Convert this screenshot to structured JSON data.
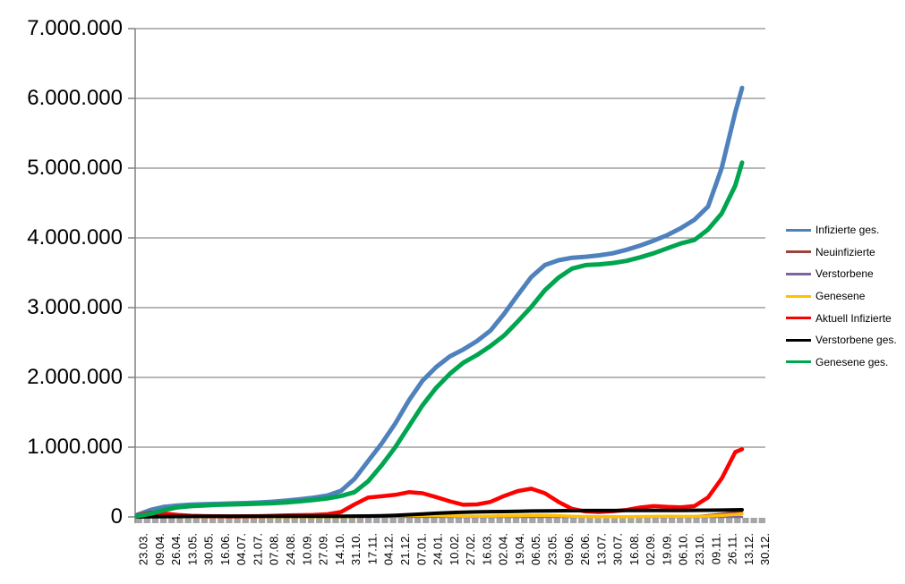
{
  "chart_data": {
    "type": "line",
    "title": "",
    "xlabel": "",
    "ylabel": "",
    "grid": "horizontal",
    "legend_position": "right",
    "ylim": [
      0,
      7000000
    ],
    "y_tick_labels": [
      "0",
      "1.000.000",
      "2.000.000",
      "3.000.000",
      "4.000.000",
      "5.000.000",
      "6.000.000",
      "7.000.000"
    ],
    "x_tick_labels": [
      "23.03.",
      "09.04.",
      "26.04.",
      "13.05.",
      "30.05.",
      "16.06.",
      "04.07.",
      "21.07.",
      "07.08.",
      "24.08.",
      "10.09.",
      "27.09.",
      "14.10.",
      "31.10.",
      "17.11.",
      "04.12.",
      "21.12.",
      "07.01.",
      "24.01.",
      "10.02.",
      "27.02.",
      "16.03.",
      "02.04.",
      "19.04.",
      "06.05.",
      "23.05.",
      "09.06.",
      "26.06.",
      "13.07.",
      "30.07.",
      "16.08.",
      "02.09.",
      "19.09.",
      "06.10.",
      "23.10.",
      "09.11.",
      "26.11.",
      "13.12.",
      "30.12."
    ],
    "x_tick_interval_days": 17,
    "days": [
      0,
      14,
      28,
      42,
      56,
      70,
      84,
      98,
      112,
      126,
      140,
      154,
      168,
      182,
      196,
      210,
      224,
      238,
      252,
      266,
      280,
      294,
      308,
      322,
      336,
      350,
      364,
      378,
      392,
      406,
      420,
      434,
      448,
      462,
      476,
      490,
      504,
      518,
      532,
      546,
      560,
      574,
      588,
      602,
      616,
      623
    ],
    "series": [
      {
        "name": "Infizierte ges.",
        "color": "#4F81BD",
        "width": 5,
        "values_millions": [
          0.029,
          0.1,
          0.145,
          0.164,
          0.176,
          0.183,
          0.187,
          0.194,
          0.199,
          0.206,
          0.218,
          0.233,
          0.253,
          0.275,
          0.306,
          0.373,
          0.545,
          0.8,
          1.053,
          1.34,
          1.67,
          1.953,
          2.148,
          2.3,
          2.4,
          2.52,
          2.67,
          2.91,
          3.18,
          3.44,
          3.61,
          3.68,
          3.715,
          3.73,
          3.75,
          3.78,
          3.83,
          3.89,
          3.96,
          4.04,
          4.14,
          4.26,
          4.45,
          5.0,
          5.8,
          6.15
        ]
      },
      {
        "name": "Neuinfizierte",
        "color": "#9E413C",
        "width": 2.5,
        "values_millions": [
          0.004,
          0.005,
          0.002,
          0.001,
          0.001,
          0.0005,
          0.0004,
          0.0005,
          0.0004,
          0.0006,
          0.001,
          0.0012,
          0.0015,
          0.002,
          0.003,
          0.007,
          0.018,
          0.02,
          0.018,
          0.025,
          0.022,
          0.018,
          0.012,
          0.008,
          0.008,
          0.01,
          0.015,
          0.02,
          0.022,
          0.018,
          0.01,
          0.005,
          0.002,
          0.0008,
          0.0015,
          0.002,
          0.004,
          0.008,
          0.01,
          0.007,
          0.009,
          0.012,
          0.025,
          0.045,
          0.065,
          0.06
        ]
      },
      {
        "name": "Verstorbene",
        "color": "#8064A2",
        "width": 2.5,
        "values_millions": [
          0.0001,
          0.0002,
          0.0002,
          0.0001,
          0.0001,
          0.0001,
          0.0001,
          0,
          0,
          0,
          0.0001,
          0.0001,
          0.0001,
          0.0001,
          0.0001,
          0.0002,
          0.0004,
          0.0006,
          0.0008,
          0.0009,
          0.001,
          0.0009,
          0.0008,
          0.0006,
          0.0004,
          0.0003,
          0.0002,
          0.0002,
          0.0002,
          0.0002,
          0.0002,
          0.0001,
          0.0001,
          0.0001,
          0.0001,
          0.0001,
          0.0001,
          0.0001,
          0.0001,
          0.0001,
          0.0001,
          0.0001,
          0.0002,
          0.0002,
          0.0003,
          0.0004
        ]
      },
      {
        "name": "Genesene",
        "color": "#FFC000",
        "width": 3.5,
        "values_millions": [
          0.002,
          0.004,
          0.004,
          0.003,
          0.002,
          0.001,
          0.0008,
          0.0007,
          0.0007,
          0.0008,
          0.001,
          0.0012,
          0.0014,
          0.0016,
          0.002,
          0.003,
          0.006,
          0.012,
          0.016,
          0.018,
          0.02,
          0.022,
          0.02,
          0.016,
          0.012,
          0.01,
          0.012,
          0.015,
          0.018,
          0.022,
          0.022,
          0.018,
          0.01,
          0.005,
          0.003,
          0.002,
          0.003,
          0.005,
          0.008,
          0.009,
          0.008,
          0.008,
          0.012,
          0.022,
          0.035,
          0.045
        ]
      },
      {
        "name": "Aktuell Infizierte",
        "color": "#FF0000",
        "width": 4.5,
        "values_millions": [
          0.019,
          0.06,
          0.048,
          0.028,
          0.017,
          0.011,
          0.009,
          0.008,
          0.009,
          0.012,
          0.016,
          0.022,
          0.026,
          0.028,
          0.038,
          0.07,
          0.18,
          0.277,
          0.296,
          0.317,
          0.355,
          0.34,
          0.285,
          0.225,
          0.175,
          0.18,
          0.215,
          0.3,
          0.37,
          0.405,
          0.34,
          0.215,
          0.115,
          0.078,
          0.07,
          0.082,
          0.1,
          0.135,
          0.155,
          0.145,
          0.138,
          0.155,
          0.28,
          0.55,
          0.93,
          0.97
        ]
      },
      {
        "name": "Verstorbene ges.",
        "color": "#000000",
        "width": 4,
        "values_millions": [
          0.0,
          0.002,
          0.005,
          0.007,
          0.008,
          0.0085,
          0.0088,
          0.009,
          0.0091,
          0.0092,
          0.0093,
          0.0094,
          0.0094,
          0.0095,
          0.0096,
          0.0099,
          0.011,
          0.013,
          0.017,
          0.023,
          0.032,
          0.042,
          0.052,
          0.062,
          0.068,
          0.072,
          0.075,
          0.077,
          0.08,
          0.084,
          0.086,
          0.088,
          0.09,
          0.0905,
          0.091,
          0.0915,
          0.092,
          0.092,
          0.0925,
          0.093,
          0.094,
          0.095,
          0.096,
          0.098,
          0.101,
          0.103
        ]
      },
      {
        "name": "Genesene ges.",
        "color": "#00A550",
        "width": 5,
        "values_millions": [
          0.01,
          0.046,
          0.099,
          0.139,
          0.155,
          0.166,
          0.174,
          0.179,
          0.185,
          0.191,
          0.198,
          0.208,
          0.224,
          0.244,
          0.265,
          0.3,
          0.355,
          0.51,
          0.74,
          1.0,
          1.3,
          1.6,
          1.85,
          2.05,
          2.21,
          2.32,
          2.45,
          2.6,
          2.8,
          3.01,
          3.25,
          3.43,
          3.56,
          3.61,
          3.62,
          3.64,
          3.67,
          3.72,
          3.78,
          3.85,
          3.92,
          3.97,
          4.12,
          4.35,
          4.75,
          5.08
        ]
      }
    ],
    "colors": {
      "gridline": "#8C8C8C",
      "axis": "#808080",
      "axis_band": "#A6A6A6",
      "text": "#000000",
      "background": "#FFFFFF"
    }
  }
}
